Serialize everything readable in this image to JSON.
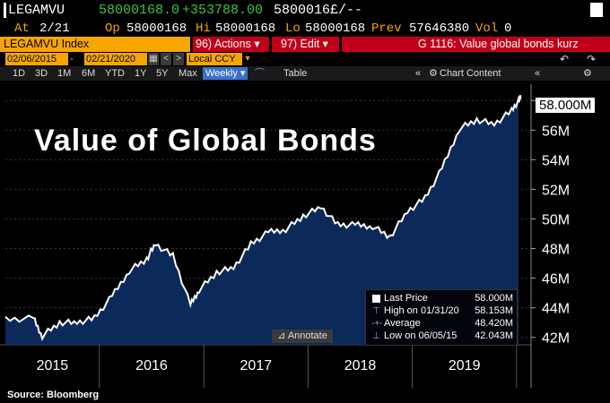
{
  "header": {
    "ticker": "LEGAMVU",
    "last": "58000168.0",
    "change": "+353788.00",
    "bid_ask": "5800016£/--",
    "at_label": "At",
    "at_value": "2/21",
    "op_label": "Op",
    "op_value": "58000168",
    "hi_label": "Hi",
    "hi_value": "58000168",
    "lo_label": "Lo",
    "lo_value": "58000168",
    "prev_label": "Prev",
    "prev_value": "57646380",
    "vol_label": "Vol",
    "vol_value": "0"
  },
  "command_bar": {
    "security": "LEGAMVU Index",
    "actions": "96) Actions ▾",
    "edit": "97) Edit ▾",
    "page_title": "G 1116: Value global bonds kurz"
  },
  "date_row": {
    "start_date": "02/06/2015",
    "end_date": "02/21/2020",
    "currency": "Local CCY"
  },
  "nav": {
    "ranges": [
      "1D",
      "3D",
      "1M",
      "6M",
      "YTD",
      "1Y",
      "5Y",
      "Max"
    ],
    "frequency": "Weekly ▾",
    "table": "Table",
    "chart_content": "Chart Content"
  },
  "chart_data": {
    "type": "area",
    "title": "Value of Global Bonds",
    "x": [
      "2015-02",
      "2015-05",
      "2015-06",
      "2015-08",
      "2015-10",
      "2015-12",
      "2016-02",
      "2016-04",
      "2016-06",
      "2016-07",
      "2016-09",
      "2016-11",
      "2016-12",
      "2017-02",
      "2017-04",
      "2017-06",
      "2017-08",
      "2017-10",
      "2017-12",
      "2018-02",
      "2018-04",
      "2018-06",
      "2018-08",
      "2018-10",
      "2018-12",
      "2019-02",
      "2019-04",
      "2019-06",
      "2019-08",
      "2019-10",
      "2019-12",
      "2020-01",
      "2020-02"
    ],
    "values": [
      43.2,
      43.3,
      42.1,
      43.0,
      43.0,
      43.3,
      44.8,
      46.5,
      47.3,
      48.3,
      47.5,
      44.2,
      45.2,
      46.4,
      46.7,
      48.3,
      49.1,
      49.3,
      50.2,
      50.8,
      49.6,
      49.6,
      49.5,
      48.8,
      50.5,
      51.4,
      53.4,
      56.1,
      56.7,
      56.4,
      57.3,
      58.2,
      58.0
    ],
    "ylim": [
      41.5,
      59.1
    ],
    "y_ticks": [
      "42M",
      "44M",
      "46M",
      "48M",
      "50M",
      "52M",
      "54M",
      "56M",
      "58M"
    ],
    "x_labels": [
      "2015",
      "2016",
      "2017",
      "2018",
      "2019"
    ],
    "last_price_label": "58.000M",
    "grid": true
  },
  "legend": {
    "rows": [
      {
        "label": "Last Price",
        "value": "58.000M"
      },
      {
        "label": "High on 01/31/20",
        "value": "58.153M"
      },
      {
        "label": "Average",
        "value": "48.420M"
      },
      {
        "label": "Low on 06/05/15",
        "value": "42.043M"
      }
    ]
  },
  "annotate_label": "Annotate",
  "source": "Source: Bloomberg",
  "colors": {
    "accent": "#f7a600",
    "red_bar": "#c00018",
    "area_fill": "#0b2a5a",
    "line": "#ffffff",
    "positive": "#3cc63c"
  }
}
